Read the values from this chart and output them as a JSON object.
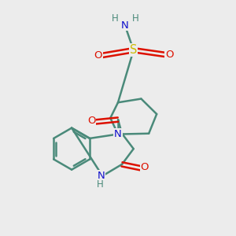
{
  "background_color": "#ececec",
  "atom_colors": {
    "C": "#4a8a7a",
    "N": "#1111cc",
    "O": "#dd1100",
    "S": "#ccbb00",
    "H": "#4a8a7a",
    "NH": "#4a8a7a"
  },
  "bond_color": "#4a8a7a",
  "bond_width": 1.8,
  "figsize": [
    3.0,
    3.0
  ],
  "dpi": 100
}
